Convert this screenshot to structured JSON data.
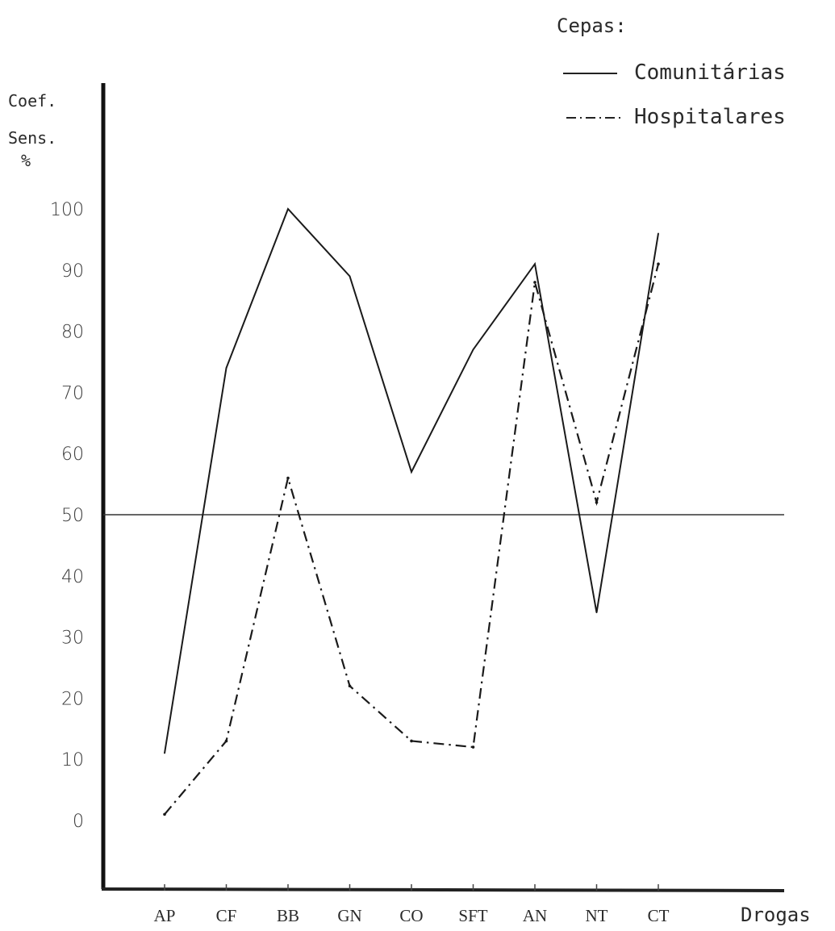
{
  "chart_data": {
    "type": "line",
    "ylabel_lines": [
      "Coef.",
      "Sens.",
      "%"
    ],
    "xlabel": "Drogas",
    "legend_title": "Cepas:",
    "legend_position": "top-right",
    "categories": [
      "AP",
      "CF",
      "BB",
      "GN",
      "CO",
      "SFT",
      "AN",
      "NT",
      "CT"
    ],
    "y_ticks": [
      0,
      10,
      20,
      30,
      40,
      50,
      60,
      70,
      80,
      90,
      100
    ],
    "ylim": [
      -12,
      120
    ],
    "reference_line": 50,
    "grid": false,
    "series": [
      {
        "name": "Comunitárias",
        "style": "solid",
        "values": [
          11,
          74,
          100,
          89,
          57,
          77,
          91,
          34,
          96
        ]
      },
      {
        "name": "Hospitalares",
        "style": "dash-dot",
        "values": [
          1,
          13,
          56,
          22,
          13,
          12,
          88,
          52,
          91
        ]
      }
    ]
  }
}
